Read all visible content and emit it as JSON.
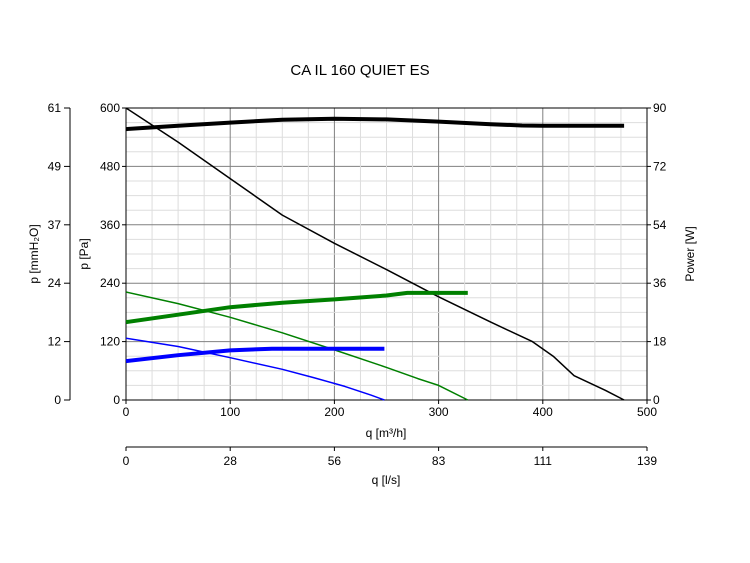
{
  "chart_data": {
    "type": "line",
    "title": "CA IL 160 QUIET ES",
    "xlabel": "q [m³/h]",
    "x2label": "q [l/s]",
    "ylabel": "p [Pa]",
    "ylabel_left_outer": "p [mmH₂O]",
    "ylabel_right": "Power [W]",
    "xlim": [
      0,
      500
    ],
    "ylim": [
      0,
      600
    ],
    "y_right_lim": [
      0,
      90
    ],
    "grid": true,
    "x_ticks": [
      "0",
      "100",
      "200",
      "300",
      "400",
      "500"
    ],
    "x2_ticks": [
      "0",
      "28",
      "56",
      "83",
      "111",
      "139"
    ],
    "y_ticks": [
      "0",
      "120",
      "240",
      "360",
      "480",
      "600"
    ],
    "y_outer_ticks": [
      "0",
      "12",
      "24",
      "37",
      "49",
      "61"
    ],
    "y_right_ticks": [
      "0",
      "18",
      "36",
      "54",
      "72",
      "90"
    ],
    "colors": {
      "high": "#000000",
      "medium": "#008000",
      "low": "#0000ff"
    },
    "series": [
      {
        "axis": "pressure",
        "color": "#000000",
        "width": 1.5,
        "x": [
          0,
          50,
          100,
          150,
          200,
          250,
          300,
          350,
          390,
          410,
          430,
          460,
          478
        ],
        "y": [
          600,
          530,
          455,
          380,
          322,
          268,
          212,
          160,
          120,
          90,
          50,
          20,
          0
        ]
      },
      {
        "axis": "power",
        "color": "#000000",
        "width": 4,
        "x": [
          0,
          50,
          100,
          150,
          200,
          250,
          300,
          350,
          380,
          400,
          478
        ],
        "y": [
          83.5,
          84.5,
          85.5,
          86.4,
          86.7,
          86.5,
          85.8,
          85,
          84.6,
          84.5,
          84.5
        ]
      },
      {
        "axis": "pressure",
        "color": "#008000",
        "width": 1.5,
        "x": [
          0,
          50,
          100,
          150,
          200,
          250,
          280,
          300,
          328
        ],
        "y": [
          222,
          198,
          170,
          138,
          103,
          67,
          44,
          30,
          0
        ]
      },
      {
        "axis": "power",
        "color": "#008000",
        "width": 4,
        "x": [
          0,
          50,
          100,
          150,
          200,
          250,
          270,
          328
        ],
        "y": [
          24,
          26.3,
          28.6,
          30,
          31,
          32.2,
          33,
          33
        ]
      },
      {
        "axis": "pressure",
        "color": "#0000ff",
        "width": 1.5,
        "x": [
          0,
          50,
          100,
          150,
          180,
          210,
          235,
          248
        ],
        "y": [
          127,
          110,
          87,
          63,
          46,
          28,
          10,
          0
        ]
      },
      {
        "axis": "power",
        "color": "#0000ff",
        "width": 4,
        "x": [
          0,
          50,
          100,
          140,
          200,
          248
        ],
        "y": [
          12,
          13.8,
          15.3,
          15.8,
          15.8,
          15.8
        ]
      }
    ]
  }
}
